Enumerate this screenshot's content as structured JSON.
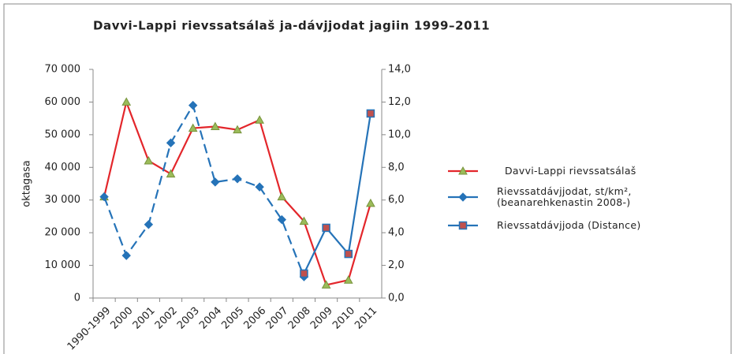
{
  "chart_data": {
    "type": "line",
    "title": "Davvi-Lappi rievssatsálaš ja-dávjjodat jagiin 1999–2011",
    "ylabel": "oktagasa",
    "categories": [
      "1990-1999",
      "2000",
      "2001",
      "2002",
      "2003",
      "2004",
      "2005",
      "2006",
      "2007",
      "2008",
      "2009",
      "2010",
      "2011"
    ],
    "ylim": [
      0,
      70000
    ],
    "yticks": [
      0,
      {
        "value": 10000,
        "label": "10 000"
      },
      {
        "value": 20000,
        "label": "20 000"
      },
      {
        "value": 30000,
        "label": "30 000"
      },
      {
        "value": 40000,
        "label": "40 000"
      },
      {
        "value": 50000,
        "label": "50 000"
      },
      {
        "value": 60000,
        "label": "60 000"
      },
      {
        "value": 70000,
        "label": "70 000"
      }
    ],
    "y2lim": [
      0,
      14
    ],
    "y2ticks": [
      {
        "value": 0,
        "label": "0,0"
      },
      {
        "value": 2,
        "label": "2,0"
      },
      {
        "value": 4,
        "label": "4,0"
      },
      {
        "value": 6,
        "label": "6,0"
      },
      {
        "value": 8,
        "label": "8,0"
      },
      {
        "value": 10,
        "label": "10,0"
      },
      {
        "value": 12,
        "label": "12,0"
      },
      {
        "value": 14,
        "label": "14,0"
      }
    ],
    "grid": false,
    "legend": "right",
    "series": [
      {
        "name": "Davvi-Lappi rievssatsálaš",
        "color": "#e3262b",
        "marker": "triangle",
        "marker_color": "#9bbb59",
        "line_style": "solid",
        "values": [
          31000,
          60000,
          42000,
          38000,
          52000,
          52500,
          51500,
          54500,
          31000,
          23500,
          4000,
          5500,
          29000
        ]
      },
      {
        "name": "Rievssatdávjjodat, st/km², (beanarehkenastin 2008-)",
        "color": "#2573b8",
        "marker": "diamond",
        "marker_color": "#2573b8",
        "line_style": "dashed",
        "axis": "y2",
        "values": [
          6.2,
          2.6,
          4.5,
          9.5,
          11.8,
          7.1,
          7.3,
          6.8,
          4.8,
          1.3,
          null,
          null,
          null
        ]
      },
      {
        "name": "Rievssatdávjjoda (Distance)",
        "color": "#2573b8",
        "marker": "square",
        "marker_color": "#c0504d",
        "line_style": "solid",
        "axis": "y2",
        "values": [
          null,
          null,
          null,
          null,
          null,
          null,
          null,
          null,
          null,
          1.5,
          4.3,
          2.7,
          11.3
        ]
      }
    ]
  }
}
